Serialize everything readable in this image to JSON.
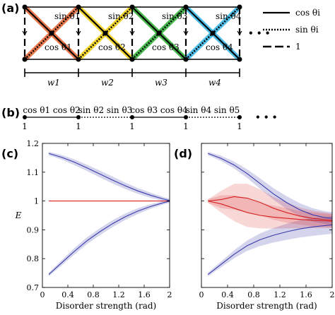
{
  "panel_labels": {
    "a": "(a)",
    "b": "(b)",
    "c": "(c)",
    "d": "(d)"
  },
  "panel_a": {
    "segments": [
      {
        "color": "#e8693a",
        "sin": "sin θ1",
        "cos": "cos θ1",
        "w": "w1"
      },
      {
        "color": "#f2d21c",
        "sin": "sin θ2",
        "cos": "cos θ2",
        "w": "w2"
      },
      {
        "color": "#35b23c",
        "sin": "sin θ3",
        "cos": "cos θ3",
        "w": "w3"
      },
      {
        "color": "#3cb7e6",
        "sin": "sin θ4",
        "cos": "cos θ4",
        "w": "w4"
      }
    ],
    "ellipsis": "• • •"
  },
  "legend": [
    {
      "style": "solid",
      "label": "cos θi"
    },
    {
      "style": "dotted",
      "label": "sin θi"
    },
    {
      "style": "dashed",
      "label": "1"
    }
  ],
  "panel_b": {
    "bond_labels": [
      "cos θ1 cos θ2",
      "sin θ2 sin θ3",
      "cos θ3 cos θ4",
      "sin θ4 sin θ5"
    ],
    "bond_styles": [
      "solid",
      "dotted",
      "solid",
      "dotted"
    ],
    "site_labels": [
      "1",
      "1",
      "1",
      "1",
      "1"
    ],
    "ellipsis": "• • •"
  },
  "chart_data": [
    {
      "type": "line",
      "panel": "(c)",
      "xlabel": "Disorder strength (rad)",
      "ylabel": "E",
      "xlim": [
        0,
        2
      ],
      "ylim": [
        0.7,
        1.2
      ],
      "xticks": [
        0,
        0.4,
        0.8,
        1.2,
        1.6,
        2
      ],
      "yticks": [
        0.7,
        0.8,
        0.9,
        1,
        1.1,
        1.2
      ],
      "x": [
        0.1,
        0.3,
        0.5,
        0.7,
        0.9,
        1.1,
        1.3,
        1.5,
        1.7,
        1.9,
        2.0
      ],
      "series": [
        {
          "color": "#3b3bab",
          "values": [
            1.165,
            1.152,
            1.135,
            1.115,
            1.094,
            1.073,
            1.053,
            1.035,
            1.02,
            1.007,
            1.002
          ],
          "band": [
            0.006,
            0.008,
            0.01,
            0.011,
            0.012,
            0.012,
            0.011,
            0.01,
            0.009,
            0.007,
            0.006
          ]
        },
        {
          "color": "#3b3bab",
          "values": [
            0.745,
            0.785,
            0.825,
            0.862,
            0.893,
            0.921,
            0.945,
            0.965,
            0.981,
            0.994,
            0.999
          ],
          "band": [
            0.006,
            0.009,
            0.011,
            0.012,
            0.012,
            0.012,
            0.011,
            0.01,
            0.008,
            0.006,
            0.005
          ]
        },
        {
          "color": "#d62020",
          "values": [
            1,
            1,
            1,
            1,
            1,
            1,
            1,
            1,
            1,
            1,
            1
          ],
          "band": [
            0,
            0,
            0,
            0,
            0,
            0,
            0,
            0,
            0,
            0,
            0
          ]
        }
      ]
    },
    {
      "type": "line",
      "panel": "(d)",
      "xlabel": "Disorder strength (rad)",
      "ylabel": "",
      "xlim": [
        0,
        2
      ],
      "ylim": [
        0.7,
        1.2
      ],
      "xticks": [
        0,
        0.4,
        0.8,
        1.2,
        1.6,
        2
      ],
      "yticks": [
        0.7,
        0.8,
        0.9,
        1,
        1.1,
        1.2
      ],
      "x": [
        0.1,
        0.3,
        0.5,
        0.7,
        0.9,
        1.1,
        1.3,
        1.5,
        1.7,
        1.9,
        2.0
      ],
      "series": [
        {
          "color": "#3b3bab",
          "values": [
            1.165,
            1.148,
            1.125,
            1.095,
            1.06,
            1.025,
            0.995,
            0.97,
            0.952,
            0.942,
            0.94
          ],
          "band": [
            0.006,
            0.009,
            0.012,
            0.015,
            0.018,
            0.02,
            0.022,
            0.023,
            0.023,
            0.022,
            0.022
          ]
        },
        {
          "color": "#3b3bab",
          "values": [
            0.745,
            0.78,
            0.815,
            0.845,
            0.866,
            0.881,
            0.893,
            0.903,
            0.91,
            0.915,
            0.917
          ],
          "band": [
            0.006,
            0.01,
            0.014,
            0.018,
            0.022,
            0.025,
            0.028,
            0.03,
            0.031,
            0.031,
            0.031
          ]
        },
        {
          "color": "#d62020",
          "values": [
            1.0,
            1.005,
            1.015,
            1.01,
            0.995,
            0.975,
            0.96,
            0.948,
            0.94,
            0.935,
            0.933
          ],
          "band": [
            0.006,
            0.03,
            0.045,
            0.05,
            0.045,
            0.04,
            0.035,
            0.03,
            0.027,
            0.025,
            0.024
          ]
        },
        {
          "color": "#d62020",
          "values": [
            1.0,
            0.99,
            0.975,
            0.96,
            0.95,
            0.944,
            0.94,
            0.936,
            0.933,
            0.931,
            0.93
          ],
          "band": [
            0.006,
            0.03,
            0.045,
            0.05,
            0.045,
            0.04,
            0.035,
            0.03,
            0.027,
            0.025,
            0.024
          ]
        }
      ]
    }
  ]
}
